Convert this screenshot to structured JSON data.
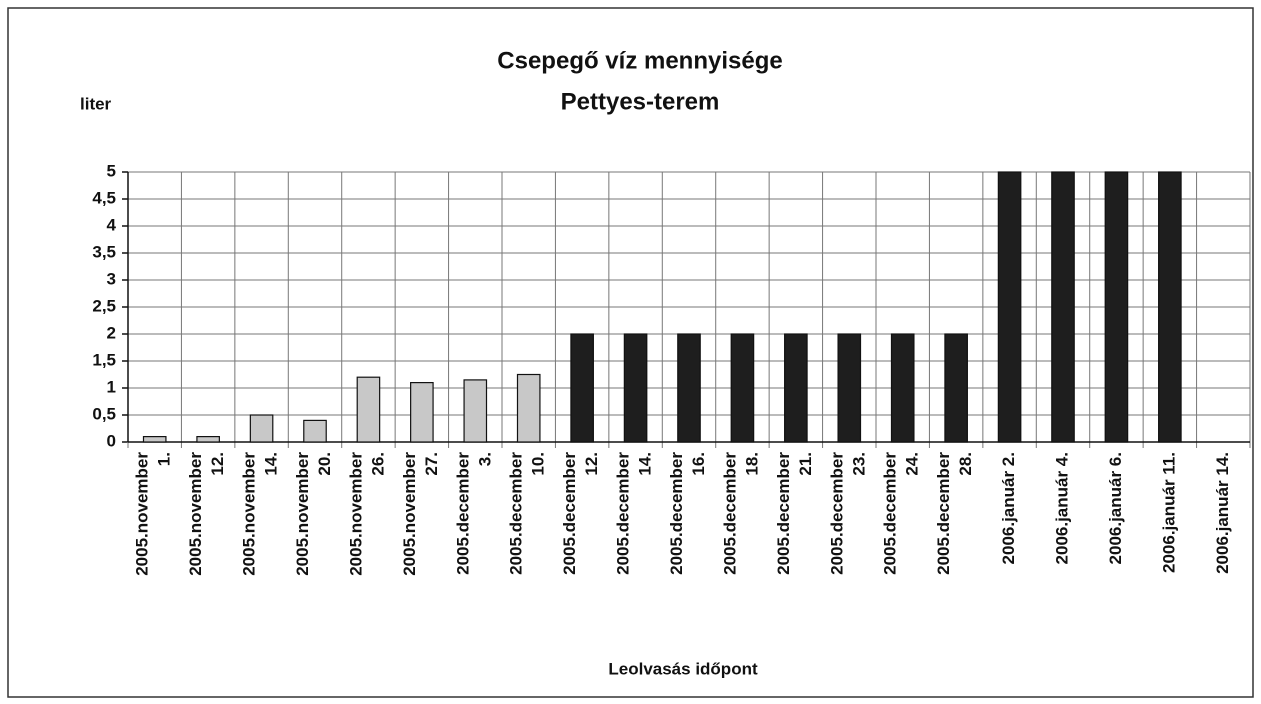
{
  "chart_data": {
    "type": "bar",
    "title": "Csepegő víz mennyisége",
    "subtitle": "Pettyes-terem",
    "y_label": "liter",
    "x_label": "Leolvasás időpont",
    "categories": [
      "2005.november\n1.",
      "2005.november\n12.",
      "2005.november\n14.",
      "2005.november\n20.",
      "2005.november\n26.",
      "2005.november\n27.",
      "2005.december\n3.",
      "2005.december\n10.",
      "2005.december\n12.",
      "2005.december\n14.",
      "2005.december\n16.",
      "2005.december\n18.",
      "2005.december\n21.",
      "2005.december\n23.",
      "2005.december\n24.",
      "2005.december\n28.",
      "2006.január 2.",
      "2006.január 4.",
      "2006.január 6.",
      "2006.január 11.",
      "2006.január 14."
    ],
    "values": [
      0.1,
      0.1,
      0.5,
      0.4,
      1.2,
      1.1,
      1.15,
      1.25,
      2,
      2,
      2,
      2,
      2,
      2,
      2,
      2,
      5,
      5,
      5,
      5,
      null
    ],
    "colors": [
      "#c8c8c8",
      "#c8c8c8",
      "#c8c8c8",
      "#c8c8c8",
      "#c8c8c8",
      "#c8c8c8",
      "#c8c8c8",
      "#c8c8c8",
      "#1e1e1e",
      "#1e1e1e",
      "#1e1e1e",
      "#1e1e1e",
      "#1e1e1e",
      "#1e1e1e",
      "#1e1e1e",
      "#1e1e1e",
      "#1e1e1e",
      "#1e1e1e",
      "#1e1e1e",
      "#1e1e1e",
      "#1e1e1e"
    ],
    "ylim": [
      0,
      5
    ],
    "yticks": [
      0,
      {
        "value": 0.5,
        "label": "0,5"
      },
      1,
      {
        "value": 1.5,
        "label": "1,5"
      },
      2,
      {
        "value": 2.5,
        "label": "2,5"
      },
      3,
      {
        "value": 3.5,
        "label": "3,5"
      },
      4,
      {
        "value": 4.5,
        "label": "4,5"
      },
      5
    ],
    "grid": true
  }
}
